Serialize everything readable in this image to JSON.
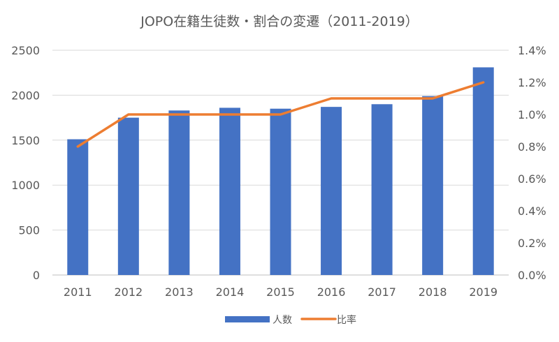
{
  "chart_data": {
    "type": "bar",
    "title": "JOPO在籍生徒数・割合の変遷（2011-2019）",
    "categories": [
      "2011",
      "2012",
      "2013",
      "2014",
      "2015",
      "2016",
      "2017",
      "2018",
      "2019"
    ],
    "series": [
      {
        "name": "人数",
        "type": "bar",
        "axis": "left",
        "color": "#4472C4",
        "values": [
          1510,
          1750,
          1830,
          1860,
          1850,
          1870,
          1900,
          1990,
          2310
        ]
      },
      {
        "name": "比率",
        "type": "line",
        "axis": "right",
        "color": "#ED7D31",
        "values": [
          0.008,
          0.01,
          0.01,
          0.01,
          0.01,
          0.011,
          0.011,
          0.011,
          0.012
        ]
      }
    ],
    "y_left": {
      "min": 0,
      "max": 2500,
      "step": 500,
      "ticks": [
        "0",
        "500",
        "1000",
        "1500",
        "2000",
        "2500"
      ]
    },
    "y_right": {
      "min": 0,
      "max": 0.014,
      "step": 0.002,
      "ticks": [
        "0.0%",
        "0.2%",
        "0.4%",
        "0.6%",
        "0.8%",
        "1.0%",
        "1.2%",
        "1.4%"
      ]
    },
    "grid": true,
    "legend_position": "bottom"
  }
}
